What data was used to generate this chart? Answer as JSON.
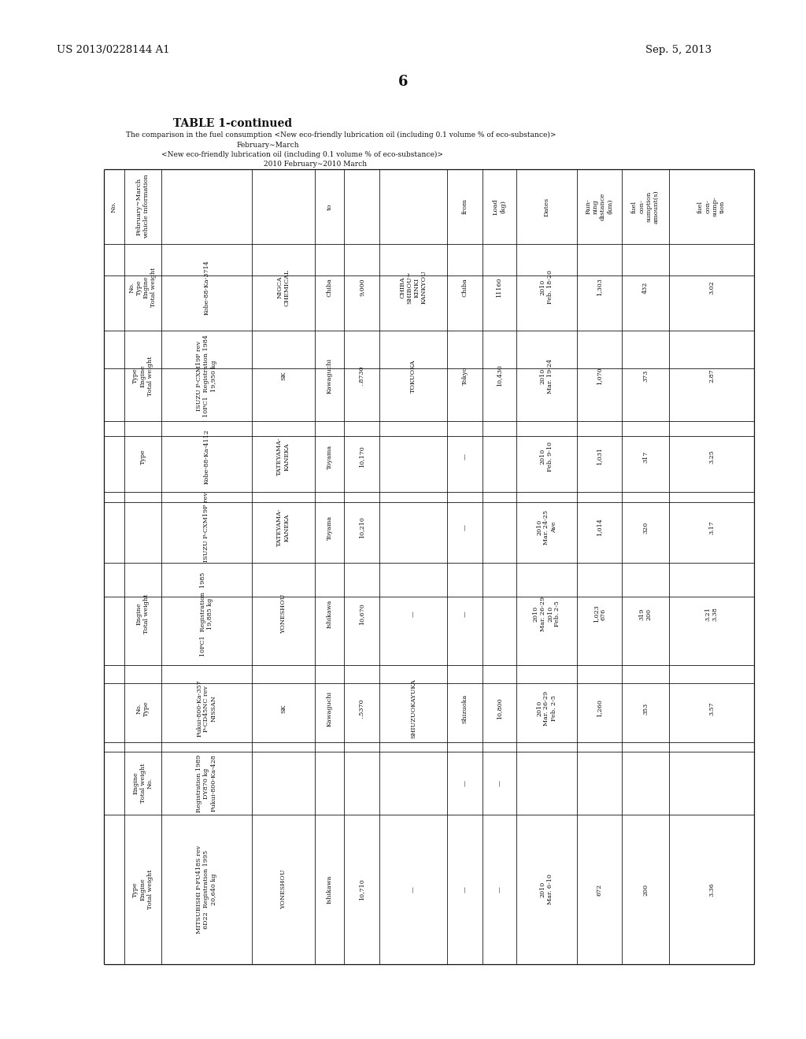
{
  "patent_number": "US 2013/0228144 A1",
  "patent_date": "Sep. 5, 2013",
  "page_number": "6",
  "table_title": "TABLE 1-continued",
  "caption_line1": "The comparison in the fuel consumption <New eco-friendly lubrication oil (including 0.1 volume % of eco-substance)>",
  "caption_line2": "February∼March",
  "caption_line3": "<New eco-friendly lubrication oil (including 0.1 volume % of eco-substance)>",
  "caption_line4": "2010 February∼2010 March",
  "col_headers_rotated": [
    "February~March\nvehicle information",
    "to",
    "",
    "from",
    "Load\n(kg)",
    "Dates",
    "Run-\nning\ndistance\n(km)",
    "fuel\ncon-\nsumption\namount(s)",
    "fuel\ncon-\nsump-\ntion"
  ],
  "rows": [
    {
      "label_col": "No.\nType\nEngine\nTotal weight",
      "vehicle_id": "Kobe-88-Ka-3714",
      "company": "NIGCA\nCHEMICAL",
      "to_city": "Chiba",
      "km": "9,000",
      "route": "CHIBA\nSHIBOU~\nKINKI\nKANKYOU",
      "from_city": "Chiba",
      "load": "11160",
      "dates": "2010\nFeb. 18-20",
      "running": "1,303",
      "fuel_amt": "432",
      "fuel_rate": "3.02"
    },
    {
      "label_col": "Type\nEngine\nTotal weight",
      "vehicle_id": "ISUZU P-CXM19P rev\n10PC1  Registration 1984\n19,950 kg",
      "company": "SK",
      "to_city": "Kawaguchi",
      "km": "‥8730",
      "route": "TOKUOKA",
      "from_city": "Tokyo",
      "load": "10,430",
      "dates": "2010\nMar. 19-24",
      "running": "1,070",
      "fuel_amt": "373",
      "fuel_rate": "2.87"
    },
    {
      "label_col": "Type",
      "vehicle_id": "Kobe-88-Ka-4112",
      "company": "TATEYAMA-\nKANEKA",
      "to_city": "Toyama",
      "km": "10,170",
      "route": "",
      "from_city": "—",
      "load": "",
      "dates": "2010\nFeb. 9-10",
      "running": "1,031",
      "fuel_amt": "317",
      "fuel_rate": "3.25"
    },
    {
      "label_col": "",
      "vehicle_id": "ISUZU P-CXM19P rev",
      "company": "TATEYAMA-\nKANEKA",
      "to_city": "Toyama",
      "km": "10,210",
      "route": "",
      "from_city": "—",
      "load": "",
      "dates": "2010\nMar. 24-25\nAve",
      "running": "1,014",
      "fuel_amt": "320",
      "fuel_rate": "3.17"
    },
    {
      "label_col": "Engine\nTotal weight",
      "vehicle_id": "10PC1  Registration  1985\n19,885 kg",
      "company": "YONESHOU",
      "to_city": "Ishikawa",
      "km": "10,670",
      "route": "—",
      "from_city": "—",
      "load": "",
      "dates": "2010\nMar. 26-29\n2010\nFeb. 2-5",
      "running": "1,023\n676",
      "fuel_amt": "319\n200",
      "fuel_rate": "3.21\n3.38"
    },
    {
      "label_col": "No.\nType",
      "vehicle_id": "Fukui-800-Ka-357\nP-CD45NC rev\nNISSAN",
      "company": "SK",
      "to_city": "Kawaguchi",
      "km": "‥5370",
      "route": "SHIUZUOKAYUKA",
      "from_city": "Shizuoka",
      "load": "10,800",
      "dates": "2010\nMar. 26-29\nFeb. 2-5",
      "running": "1,260",
      "fuel_amt": "353",
      "fuel_rate": "3.57"
    },
    {
      "label_col": "Engine\nTotal weight\nNo.",
      "vehicle_id": "Registration 1989\nDY870 kg\nFukui-800-Ka-428",
      "company": "",
      "to_city": "",
      "km": "",
      "route": "",
      "from_city": "—",
      "load": "—",
      "dates": "",
      "running": "",
      "fuel_amt": "",
      "fuel_rate": ""
    },
    {
      "label_col": "Type\nEngine\nTotal weight",
      "vehicle_id": "MITSUBISHI P-FU418S rev\n6D22  Registration 1995\n20,640 kg",
      "company": "YONESHOU",
      "to_city": "Ishikawa",
      "km": "10,710",
      "route": "—",
      "from_city": "—",
      "load": "—",
      "dates": "2010\nMar. 6-10",
      "running": "672",
      "fuel_amt": "200",
      "fuel_rate": "3.36"
    }
  ]
}
